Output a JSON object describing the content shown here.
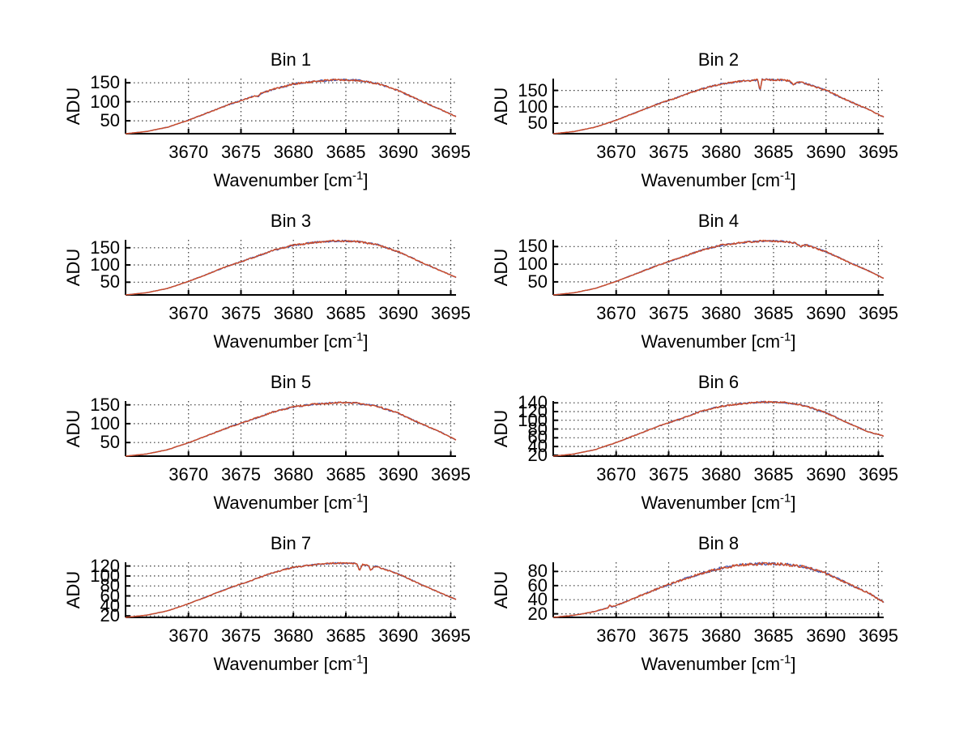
{
  "axes": {
    "ylabel": "ADU",
    "xlabel_base": "Wavenumber [cm",
    "xlabel_exp": "-1",
    "xlabel_close": "]",
    "xticks": [
      3670,
      3675,
      3680,
      3685,
      3690,
      3695
    ],
    "xlim": [
      3664,
      3695.5
    ],
    "grid": "dotted",
    "legend": "none"
  },
  "colors": {
    "axis": "#000000",
    "grid": "#3a3a3a",
    "background": "#ffffff",
    "text": "#000000",
    "series_blue": "#4a5ab2",
    "series_orange": "#cf4c26"
  },
  "chart_data": [
    {
      "type": "line",
      "title": "Bin 1",
      "yticks": [
        50,
        100,
        150
      ],
      "ylim": [
        16,
        161
      ],
      "noise": 0.016,
      "x": [
        3664,
        3666,
        3668,
        3670,
        3672,
        3674,
        3676,
        3678,
        3680,
        3682,
        3684,
        3686,
        3688,
        3690,
        3692,
        3694,
        3695.5
      ],
      "series": [
        {
          "name": "series-blue",
          "color": "#4a5ab2",
          "values": [
            16,
            21.7,
            33,
            51.5,
            72.8,
            94.1,
            112.6,
            132.4,
            146.6,
            153.7,
            158,
            156.6,
            148.1,
            129.6,
            104,
            79.9,
            61
          ]
        },
        {
          "name": "series-orange",
          "color": "#cf4c26",
          "values": [
            16,
            21.7,
            33,
            51.5,
            72.8,
            94.1,
            112.6,
            132.4,
            146.6,
            153.7,
            158,
            156.6,
            148.1,
            129.6,
            104,
            79.9,
            61
          ]
        }
      ],
      "features": [
        {
          "x": 3676.6,
          "value": 113,
          "width": 0.5
        }
      ]
    },
    {
      "type": "line",
      "title": "Bin 2",
      "yticks": [
        50,
        100,
        150
      ],
      "ylim": [
        18,
        186
      ],
      "noise": 0.016,
      "x": [
        3664,
        3666,
        3668,
        3670,
        3672,
        3674,
        3676,
        3678,
        3680,
        3682,
        3684,
        3686,
        3688,
        3690,
        3692,
        3694,
        3695.5
      ],
      "series": [
        {
          "name": "series-blue",
          "color": "#4a5ab2",
          "values": [
            18,
            24.6,
            37.8,
            59.3,
            84,
            108.8,
            130.2,
            153.3,
            169.8,
            178.1,
            183,
            181.4,
            171.5,
            150,
            120.3,
            92.3,
            69
          ]
        },
        {
          "name": "series-orange",
          "color": "#cf4c26",
          "values": [
            18,
            24.6,
            37.8,
            59.3,
            84,
            108.8,
            130.2,
            153.3,
            169.8,
            178.1,
            183,
            181.4,
            171.5,
            150,
            120.3,
            92.3,
            69
          ]
        }
      ],
      "features": [
        {
          "x": 3683.7,
          "value": 148,
          "width": 0.4
        },
        {
          "x": 3686.9,
          "value": 166,
          "width": 0.7
        }
      ]
    },
    {
      "type": "line",
      "title": "Bin 3",
      "yticks": [
        50,
        100,
        150
      ],
      "ylim": [
        13,
        173
      ],
      "noise": 0.015,
      "x": [
        3664,
        3666,
        3668,
        3670,
        3672,
        3674,
        3676,
        3678,
        3680,
        3682,
        3684,
        3686,
        3688,
        3690,
        3692,
        3694,
        3695.5
      ],
      "series": [
        {
          "name": "series-blue",
          "color": "#4a5ab2",
          "values": [
            13,
            19.3,
            31.8,
            52.3,
            75.8,
            99.4,
            119.8,
            141.7,
            157.4,
            165.3,
            170,
            168.4,
            159,
            138.6,
            110.3,
            83.7,
            64
          ]
        },
        {
          "name": "series-orange",
          "color": "#cf4c26",
          "values": [
            13,
            19.3,
            31.8,
            52.3,
            75.8,
            99.4,
            119.8,
            141.7,
            157.4,
            165.3,
            170,
            168.4,
            159,
            138.6,
            110.3,
            83.7,
            64
          ]
        }
      ],
      "features": []
    },
    {
      "type": "line",
      "title": "Bin 4",
      "yticks": [
        50,
        100,
        150
      ],
      "ylim": [
        13,
        169
      ],
      "noise": 0.015,
      "x": [
        3664,
        3666,
        3668,
        3670,
        3672,
        3674,
        3676,
        3678,
        3680,
        3682,
        3684,
        3686,
        3688,
        3690,
        3692,
        3694,
        3695.5
      ],
      "series": [
        {
          "name": "series-blue",
          "color": "#4a5ab2",
          "values": [
            13,
            19.1,
            31.4,
            51.3,
            74.2,
            97.2,
            117,
            138.5,
            153.8,
            161.4,
            166,
            164.5,
            155.3,
            135.4,
            107.9,
            81.9,
            60
          ]
        },
        {
          "name": "series-orange",
          "color": "#cf4c26",
          "values": [
            13,
            19.1,
            31.4,
            51.3,
            74.2,
            97.2,
            117,
            138.5,
            153.8,
            161.4,
            166,
            164.5,
            155.3,
            135.4,
            107.9,
            81.9,
            60
          ]
        }
      ],
      "features": [
        {
          "x": 3687.6,
          "value": 149,
          "width": 0.8
        }
      ]
    },
    {
      "type": "line",
      "title": "Bin 5",
      "yticks": [
        50,
        100,
        150
      ],
      "ylim": [
        14,
        160
      ],
      "noise": 0.015,
      "x": [
        3664,
        3666,
        3668,
        3670,
        3672,
        3674,
        3676,
        3678,
        3680,
        3682,
        3684,
        3686,
        3688,
        3690,
        3692,
        3694,
        3695.5
      ],
      "series": [
        {
          "name": "series-blue",
          "color": "#4a5ab2",
          "values": [
            14,
            19.7,
            31,
            49.5,
            70.8,
            92.1,
            110.6,
            130.4,
            144.6,
            151.7,
            156,
            154.6,
            146.1,
            127.6,
            102,
            77.9,
            57
          ]
        },
        {
          "name": "series-orange",
          "color": "#cf4c26",
          "values": [
            14,
            19.7,
            31,
            49.5,
            70.8,
            92.1,
            110.6,
            130.4,
            144.6,
            151.7,
            156,
            154.6,
            146.1,
            127.6,
            102,
            77.9,
            57
          ]
        }
      ],
      "features": []
    },
    {
      "type": "line",
      "title": "Bin 6",
      "yticks": [
        20,
        40,
        60,
        80,
        100,
        120,
        140
      ],
      "ylim": [
        18,
        144
      ],
      "noise": 0.013,
      "x": [
        3664,
        3666,
        3668,
        3670,
        3672,
        3674,
        3676,
        3678,
        3680,
        3682,
        3684,
        3686,
        3688,
        3690,
        3692,
        3694,
        3695.5
      ],
      "series": [
        {
          "name": "series-blue",
          "color": "#4a5ab2",
          "values": [
            18,
            23,
            32.9,
            49,
            67.6,
            86.2,
            102.3,
            119.7,
            132.1,
            138.3,
            142,
            140.8,
            133.3,
            117.2,
            94.9,
            73.8,
            64
          ]
        },
        {
          "name": "series-orange",
          "color": "#cf4c26",
          "values": [
            18,
            23,
            32.9,
            49,
            67.6,
            86.2,
            102.3,
            119.7,
            132.1,
            138.3,
            142,
            140.8,
            133.3,
            117.2,
            94.9,
            73.8,
            64
          ]
        }
      ],
      "features": []
    },
    {
      "type": "line",
      "title": "Bin 7",
      "yticks": [
        20,
        40,
        60,
        80,
        100,
        120
      ],
      "ylim": [
        17,
        127.5
      ],
      "noise": 0.012,
      "x": [
        3664,
        3666,
        3668,
        3670,
        3672,
        3674,
        3676,
        3678,
        3680,
        3682,
        3684,
        3686,
        3688,
        3690,
        3692,
        3694,
        3695.5
      ],
      "series": [
        {
          "name": "series-blue",
          "color": "#4a5ab2",
          "values": [
            17,
            21.4,
            30.1,
            44.3,
            60.6,
            77,
            91.1,
            106.4,
            117.3,
            122.7,
            126,
            124.9,
            118.4,
            104.2,
            84.6,
            66.1,
            53
          ]
        },
        {
          "name": "series-orange",
          "color": "#cf4c26",
          "values": [
            17,
            21.4,
            30.1,
            44.3,
            60.6,
            77,
            91.1,
            106.4,
            117.3,
            122.7,
            126,
            124.9,
            118.4,
            104.2,
            84.6,
            66.1,
            53
          ]
        }
      ],
      "features": [
        {
          "x": 3686.3,
          "value": 110,
          "width": 0.5
        },
        {
          "x": 3687.4,
          "value": 111,
          "width": 0.6
        }
      ]
    },
    {
      "type": "line",
      "title": "Bin 8",
      "yticks": [
        20,
        40,
        60,
        80
      ],
      "ylim": [
        15,
        93
      ],
      "noise": 0.022,
      "x": [
        3664,
        3666,
        3668,
        3670,
        3672,
        3674,
        3676,
        3678,
        3680,
        3682,
        3684,
        3686,
        3688,
        3690,
        3692,
        3694,
        3695.5
      ],
      "series": [
        {
          "name": "series-blue",
          "color": "#4a5ab2",
          "values": [
            15,
            18,
            23.4,
            31.7,
            43.9,
            56,
            66.7,
            76.6,
            84.9,
            89.5,
            91,
            90.2,
            86.4,
            77.3,
            63.6,
            50,
            36.3
          ]
        },
        {
          "name": "series-orange",
          "color": "#cf4c26",
          "values": [
            15,
            18,
            23.4,
            31.7,
            43.9,
            56,
            66.7,
            76.6,
            84.9,
            89.5,
            91,
            90.2,
            86.4,
            77.3,
            63.6,
            50,
            36.3
          ]
        }
      ],
      "features": [
        {
          "x": 3669.4,
          "value": 33,
          "width": 0.35
        }
      ]
    }
  ]
}
